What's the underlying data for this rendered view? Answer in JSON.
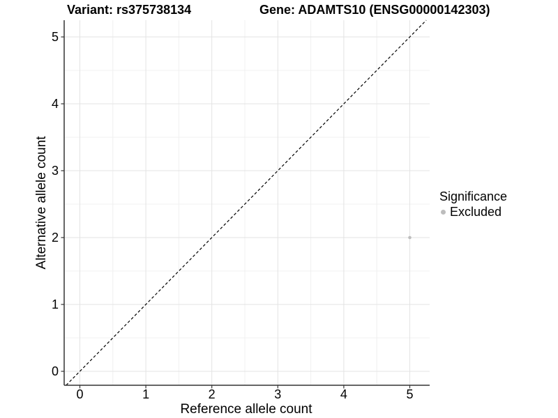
{
  "chart_data": {
    "type": "scatter",
    "titles": {
      "left": "Variant: rs375738134",
      "right": "Gene: ADAMTS10 (ENSG00000142303)"
    },
    "xlabel": "Reference allele count",
    "ylabel": "Alternative allele count",
    "x_ticks": [
      0,
      1,
      2,
      3,
      4,
      5
    ],
    "y_ticks": [
      0,
      1,
      2,
      3,
      4,
      5
    ],
    "x_minor_ticks": [
      0.5,
      1.5,
      2.5,
      3.5,
      4.5
    ],
    "y_minor_ticks": [
      0.5,
      1.5,
      2.5,
      3.5,
      4.5
    ],
    "xlim": [
      -0.25,
      5.3
    ],
    "ylim": [
      -0.21,
      5.25
    ],
    "grid": true,
    "identity_line": {
      "show": true,
      "style": "dashed",
      "color": "#000000"
    },
    "points": [
      {
        "x": 5,
        "y": 2,
        "significance": "Excluded"
      }
    ],
    "point_radius": 2.3,
    "legend": {
      "title": "Significance",
      "position": "right",
      "items": [
        {
          "label": "Excluded",
          "color": "#bdbdbd"
        }
      ]
    },
    "colors": {
      "grid_major": "#e3e3e3",
      "grid_minor": "#f0f0f0",
      "axis_line": "#333333",
      "tick": "#333333",
      "text": "#000000",
      "point": "#bdbdbd",
      "background": "#ffffff"
    }
  }
}
